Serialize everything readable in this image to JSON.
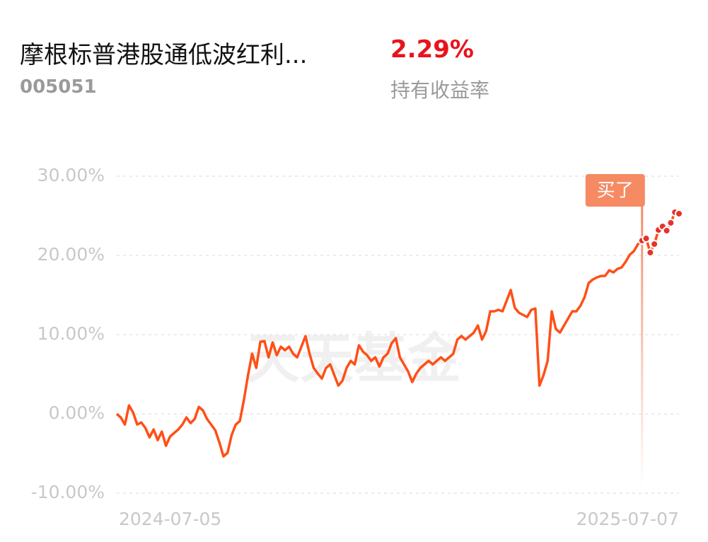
{
  "header": {
    "fund_name": "摩根标普港股通低波红利...",
    "fund_code": "005051",
    "return_value": "2.29%",
    "return_label": "持有收益率"
  },
  "chart_data": {
    "type": "line",
    "watermark": "天天基金",
    "color": "#ff4f17",
    "grid": true,
    "ylim": [
      -10,
      30
    ],
    "yticks": [
      {
        "value": 30,
        "label": "30.00%"
      },
      {
        "value": 20,
        "label": "20.00%"
      },
      {
        "value": 10,
        "label": "10.00%"
      },
      {
        "value": 0,
        "label": "0.00%"
      },
      {
        "value": -10,
        "label": "-10.00%"
      }
    ],
    "annotation": {
      "text": "买了",
      "index": 128
    },
    "categories": [
      "2024-07-05",
      null,
      null,
      null,
      null,
      null,
      null,
      null,
      null,
      null,
      null,
      null,
      null,
      null,
      null,
      null,
      null,
      null,
      null,
      null,
      null,
      null,
      null,
      null,
      null,
      null,
      null,
      null,
      null,
      null,
      null,
      null,
      null,
      null,
      null,
      null,
      null,
      null,
      null,
      null,
      null,
      null,
      null,
      null,
      null,
      null,
      null,
      null,
      null,
      null,
      null,
      null,
      null,
      null,
      null,
      null,
      null,
      null,
      null,
      null,
      null,
      null,
      null,
      null,
      null,
      null,
      null,
      null,
      null,
      null,
      null,
      null,
      null,
      null,
      null,
      null,
      null,
      null,
      null,
      null,
      null,
      null,
      null,
      null,
      null,
      null,
      null,
      null,
      null,
      null,
      null,
      null,
      null,
      null,
      null,
      null,
      null,
      null,
      null,
      null,
      null,
      null,
      null,
      null,
      null,
      null,
      null,
      null,
      null,
      null,
      null,
      null,
      null,
      null,
      null,
      null,
      null,
      null,
      null,
      null,
      null,
      null,
      null,
      null,
      null,
      null,
      null,
      null,
      null,
      null,
      null,
      null,
      null,
      null,
      null,
      null,
      null,
      "2025-07-07"
    ],
    "values": [
      0,
      -0.45,
      -1.34,
      1.07,
      0.18,
      -1.34,
      -1.07,
      -1.79,
      -2.95,
      -1.96,
      -3.3,
      -2.23,
      -4.02,
      -2.86,
      -2.41,
      -1.96,
      -1.34,
      -0.45,
      -1.16,
      -0.63,
      0.89,
      0.45,
      -0.63,
      -1.34,
      -2.05,
      -3.57,
      -5.36,
      -4.91,
      -2.68,
      -1.34,
      -0.89,
      1.79,
      4.91,
      7.59,
      5.8,
      9.11,
      9.2,
      7.14,
      9.02,
      7.41,
      8.48,
      8.04,
      8.48,
      7.59,
      7.14,
      8.48,
      9.82,
      7.59,
      5.8,
      5.09,
      4.46,
      5.8,
      6.25,
      4.91,
      3.57,
      4.2,
      5.8,
      6.7,
      6.25,
      8.66,
      7.86,
      7.41,
      6.7,
      7.14,
      5.98,
      7.14,
      7.59,
      8.93,
      9.55,
      7.14,
      6.25,
      5.36,
      4.02,
      5.09,
      5.8,
      6.25,
      6.7,
      6.25,
      6.7,
      7.14,
      6.7,
      7.14,
      7.59,
      9.38,
      9.82,
      9.38,
      9.82,
      10.27,
      11.16,
      9.38,
      10.45,
      12.95,
      12.95,
      13.13,
      12.95,
      14.29,
      15.63,
      13.39,
      12.77,
      12.5,
      12.23,
      13.13,
      13.3,
      3.57,
      4.91,
      6.7,
      12.95,
      10.71,
      10.27,
      11.16,
      12.05,
      12.95,
      12.95,
      13.66,
      14.73,
      16.52,
      16.96,
      17.23,
      17.41,
      17.41,
      18.13,
      17.86,
      18.3,
      18.48,
      19.2,
      20.09,
      20.54,
      21.43,
      21.88,
      22.14,
      20.36,
      21.43,
      23.21,
      23.66,
      23.13,
      24.11,
      25.45,
      25.27
    ]
  }
}
